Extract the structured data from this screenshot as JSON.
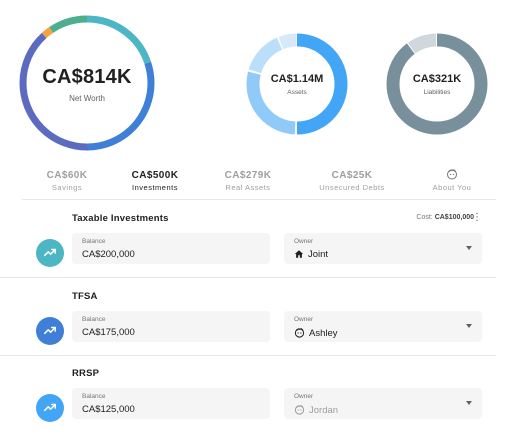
{
  "summary": {
    "net_worth": {
      "value": "CA$814K",
      "label": "Net Worth"
    },
    "assets": {
      "value": "CA$1.14M",
      "label": "Assets"
    },
    "liabilities": {
      "value": "CA$321K",
      "label": "Liabilities"
    }
  },
  "colors": {
    "accent_blue": "#42a5f5",
    "liabilities_gray": "#78909c",
    "net_worth_ring": [
      "#4db6c4",
      "#3f7fd8",
      "#5c6bc0",
      "#f2a53c",
      "#4caf8e"
    ],
    "assets_ring": [
      "#42a5f5",
      "#90caf9",
      "#bbdefb"
    ]
  },
  "tabs": [
    {
      "value": "CA$60K",
      "label": "Savings",
      "active": false
    },
    {
      "value": "CA$500K",
      "label": "Investments",
      "active": true
    },
    {
      "value": "CA$279K",
      "label": "Real Assets",
      "active": false
    },
    {
      "value": "CA$25K",
      "label": "Unsecured Debts",
      "active": false
    },
    {
      "value": "",
      "label": "About You",
      "active": false,
      "icon": "person-face-icon"
    }
  ],
  "accounts": [
    {
      "title": "Taxable Investments",
      "cost_label": "Cost:",
      "cost_value": "CA$100,000",
      "icon": "trending-up-icon",
      "icon_color": "#4db6c4",
      "balance_label": "Balance",
      "balance": "CA$200,000",
      "owner_label": "Owner",
      "owner": "Joint",
      "owner_icon": "home-icon"
    },
    {
      "title": "TFSA",
      "icon": "trending-up-icon",
      "icon_color": "#3f7fd8",
      "balance_label": "Balance",
      "balance": "CA$175,000",
      "owner_label": "Owner",
      "owner": "Ashley",
      "owner_icon": "person-face-icon"
    },
    {
      "title": "RRSP",
      "icon": "trending-up-icon",
      "icon_color": "#42a5f5",
      "balance_label": "Balance",
      "balance": "CA$125,000",
      "owner_label": "Owner",
      "owner": "Jordan",
      "owner_icon": "person-face-icon"
    }
  ]
}
